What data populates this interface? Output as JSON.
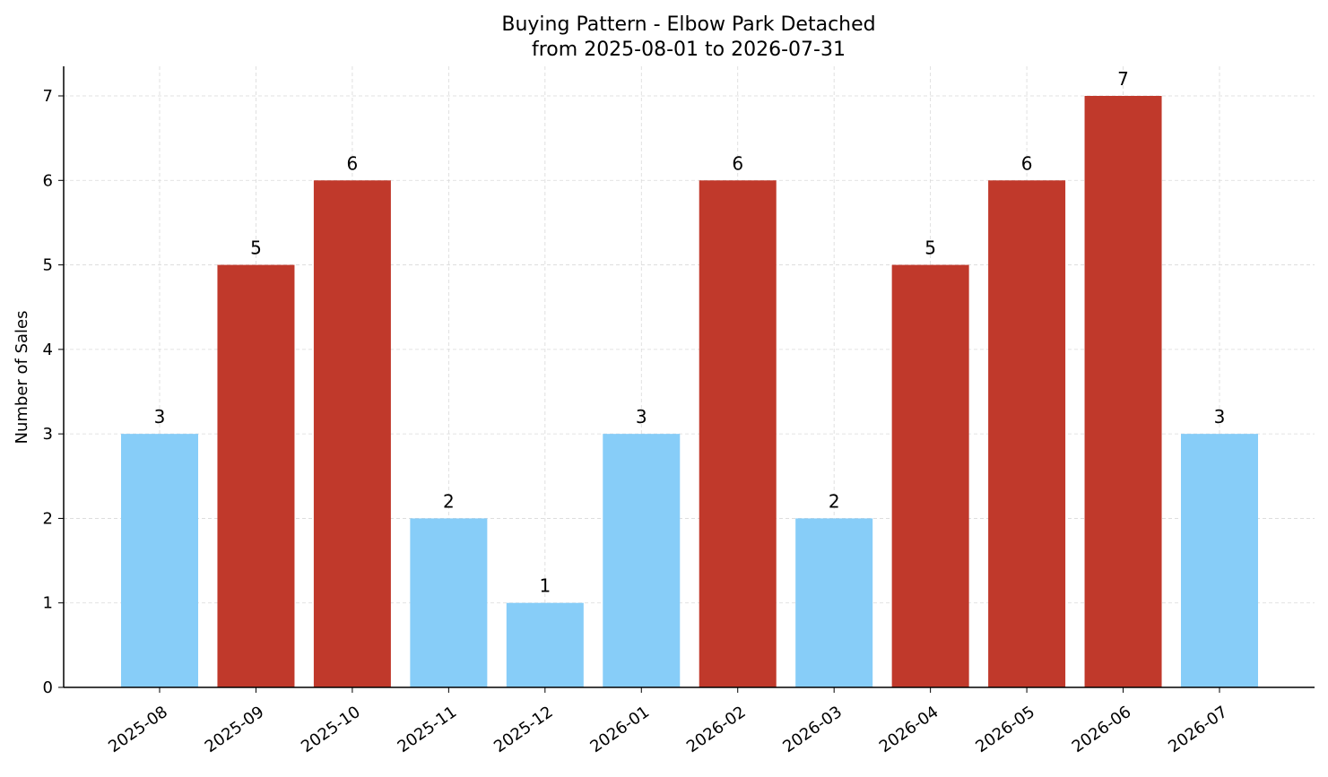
{
  "chart_data": {
    "type": "bar",
    "title": "Buying Pattern - Elbow Park Detached",
    "subtitle": "from 2025-08-01 to 2026-07-31",
    "xlabel": "",
    "ylabel": "Number of Sales",
    "ylim": [
      0,
      7.35
    ],
    "yticks": [
      0,
      1,
      2,
      3,
      4,
      5,
      6,
      7
    ],
    "grid": true,
    "categories": [
      "2025-08",
      "2025-09",
      "2025-10",
      "2025-11",
      "2025-12",
      "2026-01",
      "2026-02",
      "2026-03",
      "2026-04",
      "2026-05",
      "2026-06",
      "2026-07"
    ],
    "values": [
      3,
      5,
      6,
      2,
      1,
      3,
      6,
      2,
      5,
      6,
      7,
      3
    ],
    "highlighted": [
      false,
      true,
      true,
      false,
      false,
      false,
      true,
      false,
      true,
      true,
      true,
      false
    ],
    "colors": {
      "normal": "#87cdf8",
      "highlight": "#c0392b",
      "grid": "#d9d9d9",
      "axis": "#000000"
    }
  }
}
